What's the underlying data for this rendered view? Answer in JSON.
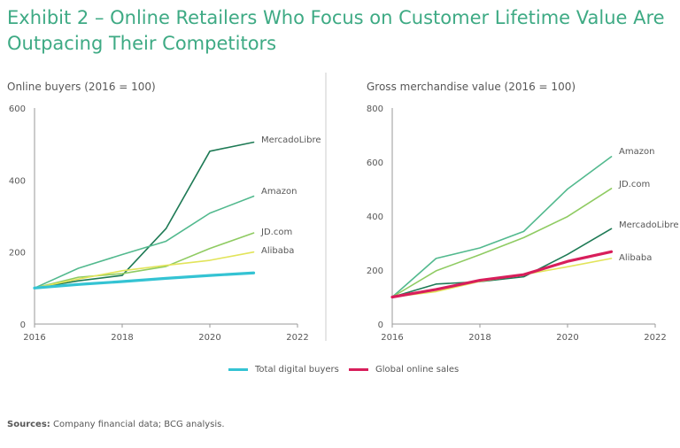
{
  "title": "Exhibit 2 – Online Retailers Who Focus on Customer Lifetime Value Are Outpacing Their Competitors",
  "colors": {
    "MercadoLibre": "#1e7a55",
    "Amazon": "#52b98e",
    "JD.com": "#8fcb62",
    "Alibaba": "#e2e45a",
    "Total digital buyers": "#34c3d3",
    "Global online sales": "#d81e5b"
  },
  "chart_data": [
    {
      "type": "line",
      "title": "Online buyers (2016 = 100)",
      "xlabel": "",
      "ylabel": "",
      "xlim": [
        2016,
        2022
      ],
      "ylim": [
        0,
        600
      ],
      "xticks": [
        "2016",
        "2018",
        "2020",
        "2022"
      ],
      "yticks": [
        "0",
        "200",
        "400",
        "600"
      ],
      "x": [
        2016,
        2017,
        2018,
        2019,
        2020,
        2021
      ],
      "series": [
        {
          "name": "MercadoLibre",
          "values": [
            100,
            120,
            135,
            265,
            480,
            505
          ]
        },
        {
          "name": "Amazon",
          "values": [
            100,
            155,
            193,
            230,
            308,
            355
          ]
        },
        {
          "name": "JD.com",
          "values": [
            100,
            130,
            140,
            160,
            210,
            253
          ]
        },
        {
          "name": "Alibaba",
          "values": [
            100,
            125,
            148,
            163,
            177,
            200
          ]
        },
        {
          "name": "Total digital buyers",
          "values": [
            100,
            110,
            118,
            127,
            135,
            142
          ],
          "emphasis": true
        }
      ]
    },
    {
      "type": "line",
      "title": "Gross merchandise value (2016 = 100)",
      "xlabel": "",
      "ylabel": "",
      "xlim": [
        2016,
        2022
      ],
      "ylim": [
        0,
        800
      ],
      "xticks": [
        "2016",
        "2018",
        "2020",
        "2022"
      ],
      "yticks": [
        "0",
        "200",
        "400",
        "600",
        "800"
      ],
      "x": [
        2016,
        2017,
        2018,
        2019,
        2020,
        2021
      ],
      "series": [
        {
          "name": "Amazon",
          "values": [
            100,
            243,
            282,
            343,
            500,
            620
          ]
        },
        {
          "name": "JD.com",
          "values": [
            100,
            197,
            257,
            320,
            398,
            502
          ]
        },
        {
          "name": "MercadoLibre",
          "values": [
            100,
            148,
            157,
            175,
            258,
            353
          ]
        },
        {
          "name": "Alibaba",
          "values": [
            100,
            120,
            158,
            183,
            212,
            243
          ]
        },
        {
          "name": "Global online sales",
          "values": [
            100,
            128,
            162,
            183,
            232,
            268
          ],
          "emphasis": true
        }
      ]
    }
  ],
  "legend": [
    {
      "name": "Total digital buyers",
      "color": "#34c3d3"
    },
    {
      "name": "Global online sales",
      "color": "#d81e5b"
    }
  ],
  "source": {
    "label": "Sources:",
    "text": "Company financial data; BCG analysis."
  }
}
